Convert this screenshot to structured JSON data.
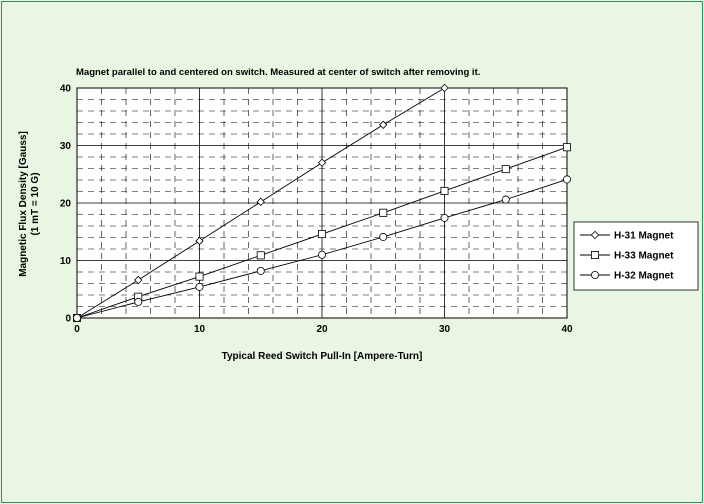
{
  "chart_data": {
    "type": "line",
    "title": "Magnet parallel to and centered on switch.  Measured at center of switch after removing it.",
    "xlabel": "Typical Reed Switch Pull-In  [Ampere-Turn]",
    "ylabel_line1": "Magnetic Flux Density [Gauss]",
    "ylabel_line2": "(1 mT = 10 G)",
    "xlim": [
      0,
      40
    ],
    "ylim": [
      0,
      40
    ],
    "x_ticks": [
      "0",
      "10",
      "20",
      "30",
      "40"
    ],
    "y_ticks": [
      "0",
      "10",
      "20",
      "30",
      "40"
    ],
    "grid": true,
    "legend_position": "right",
    "series": [
      {
        "name": "H-31 Magnet",
        "marker": "diamond",
        "points": [
          [
            0,
            0
          ],
          [
            5,
            6.6
          ],
          [
            10,
            13.4
          ],
          [
            15,
            20.2
          ],
          [
            20,
            27
          ],
          [
            25,
            33.6
          ],
          [
            30,
            40
          ]
        ]
      },
      {
        "name": "H-33 Magnet",
        "marker": "square",
        "points": [
          [
            0,
            0
          ],
          [
            5,
            3.7
          ],
          [
            10,
            7.2
          ],
          [
            15,
            10.9
          ],
          [
            20,
            14.6
          ],
          [
            25,
            18.3
          ],
          [
            30,
            22.1
          ],
          [
            35,
            25.9
          ],
          [
            40,
            29.7
          ]
        ]
      },
      {
        "name": "H-32 Magnet",
        "marker": "circle",
        "points": [
          [
            0,
            0
          ],
          [
            5,
            2.8
          ],
          [
            10,
            5.4
          ],
          [
            15,
            8.2
          ],
          [
            20,
            11
          ],
          [
            25,
            14.1
          ],
          [
            30,
            17.4
          ],
          [
            35,
            20.6
          ],
          [
            40,
            24.1
          ]
        ]
      }
    ]
  },
  "colors": {
    "background": "#eaf6e4",
    "plot_background": "#ffffff",
    "frame_border": "#2f8f5b",
    "line": "#000000"
  }
}
